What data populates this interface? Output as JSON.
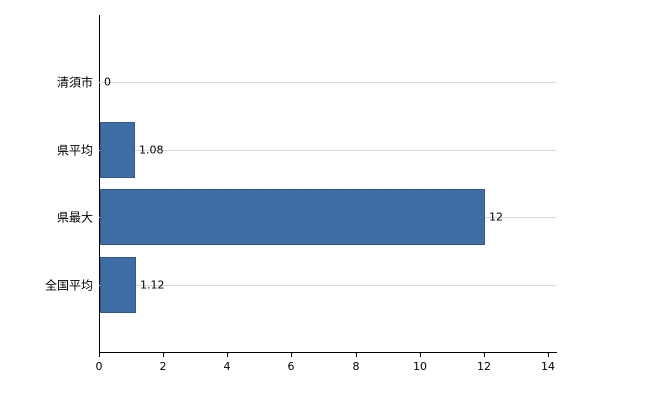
{
  "chart_data": {
    "type": "bar",
    "orientation": "horizontal",
    "title": "",
    "xlabel": "",
    "ylabel": "",
    "categories": [
      "清須市",
      "県平均",
      "県最大",
      "全国平均"
    ],
    "values": [
      0,
      1.08,
      12,
      1.12
    ],
    "value_labels": [
      "0",
      "1.08",
      "12",
      "1.12"
    ],
    "xlim": [
      0,
      14
    ],
    "xticks": [
      0,
      2,
      4,
      6,
      8,
      10,
      12,
      14
    ],
    "xtick_labels": [
      "0",
      "2",
      "4",
      "6",
      "8",
      "10",
      "12",
      "14"
    ],
    "grid": "horizontal-category-lines",
    "legend": "none",
    "colors": {
      "bar_fill": "#3e6da6",
      "bar_border": "#31598c",
      "gridline": "#d9d9d9",
      "axis": "#000000",
      "background": "#ffffff",
      "text": "#000000"
    }
  }
}
